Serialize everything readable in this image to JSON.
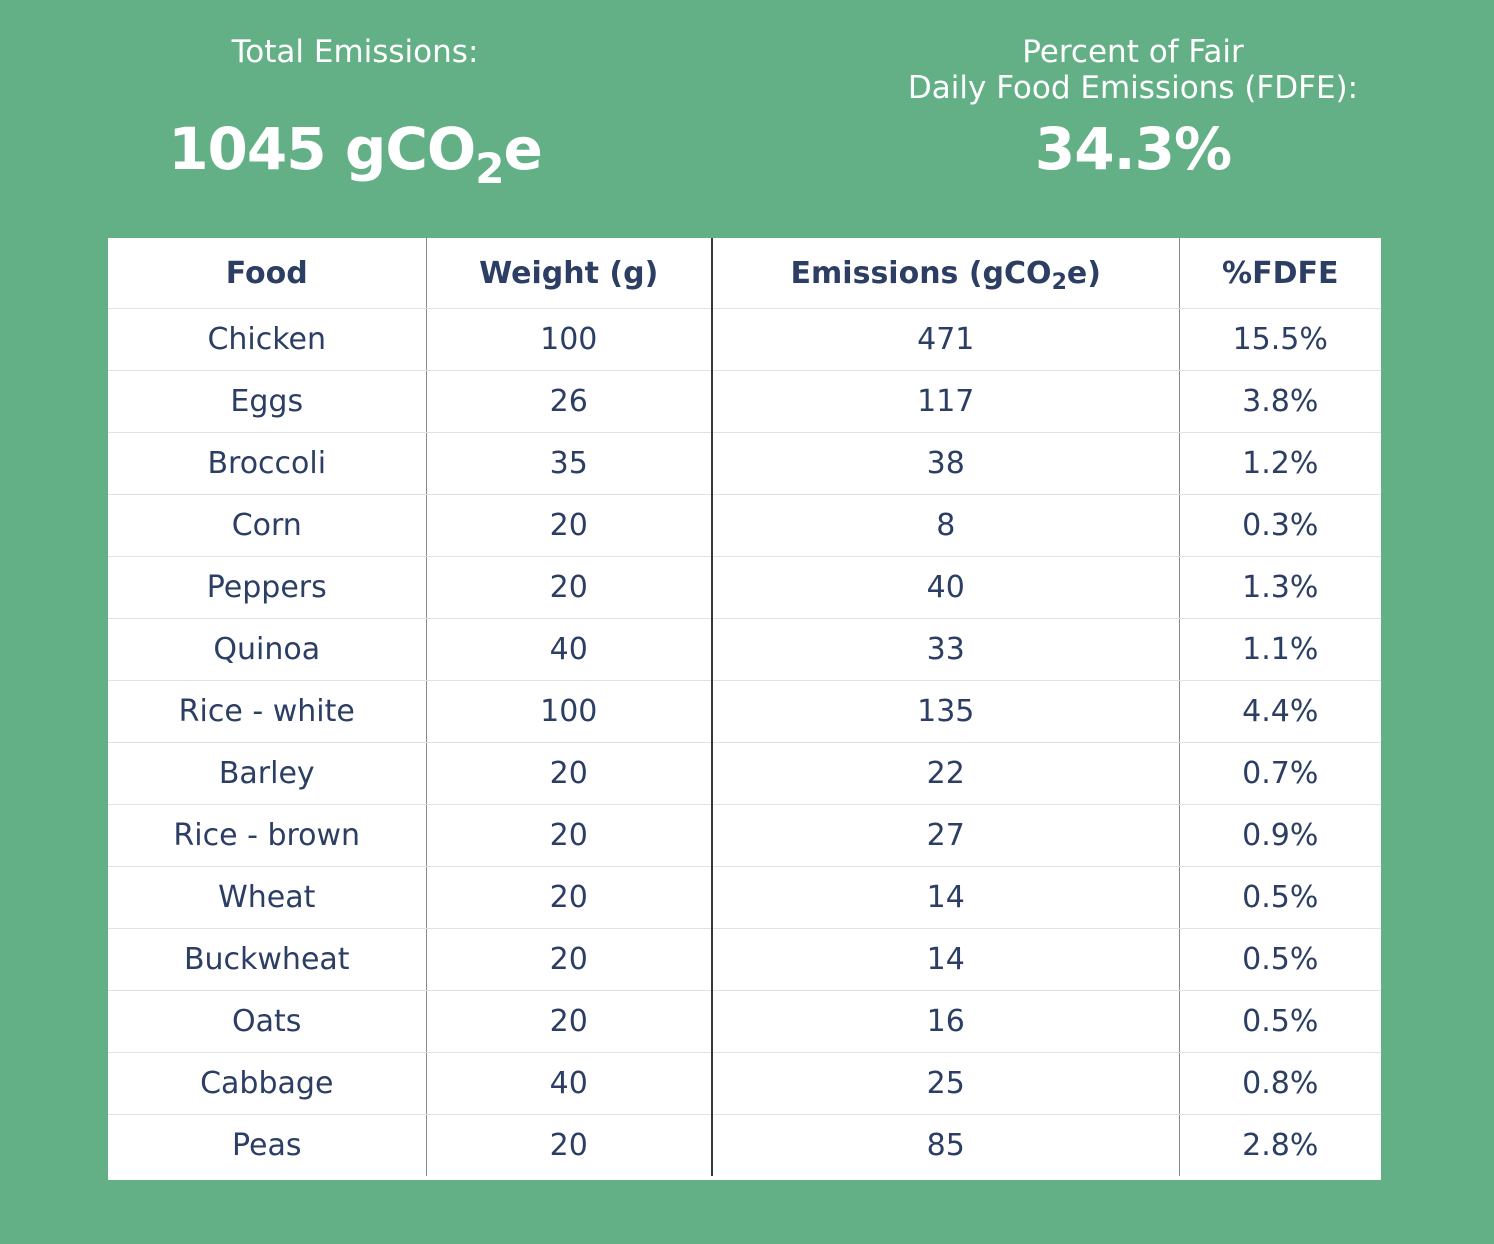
{
  "summary": {
    "total_label": "Total Emissions:",
    "total_value": "1045 gCO",
    "total_sub": "2",
    "total_suffix": "e",
    "percent_label_line1": "Percent of Fair",
    "percent_label_line2": "Daily Food Emissions (FDFE):",
    "percent_value": "34.3%"
  },
  "table": {
    "headers": {
      "food": "Food",
      "weight": "Weight (g)",
      "emissions_prefix": "Emissions (gCO",
      "emissions_sub": "2",
      "emissions_suffix": "e)",
      "fdfe": "%FDFE"
    },
    "rows": [
      [
        "Chicken",
        "100",
        "471",
        "15.5%"
      ],
      [
        "Eggs",
        "26",
        "117",
        "3.8%"
      ],
      [
        "Broccoli",
        "35",
        "38",
        "1.2%"
      ],
      [
        "Corn",
        "20",
        "8",
        "0.3%"
      ],
      [
        "Peppers",
        "20",
        "40",
        "1.3%"
      ],
      [
        "Quinoa",
        "40",
        "33",
        "1.1%"
      ],
      [
        "Rice - white",
        "100",
        "135",
        "4.4%"
      ],
      [
        "Barley",
        "20",
        "22",
        "0.7%"
      ],
      [
        "Rice - brown",
        "20",
        "27",
        "0.9%"
      ],
      [
        "Wheat",
        "20",
        "14",
        "0.5%"
      ],
      [
        "Buckwheat",
        "20",
        "14",
        "0.5%"
      ],
      [
        "Oats",
        "20",
        "16",
        "0.5%"
      ],
      [
        "Cabbage",
        "40",
        "25",
        "0.8%"
      ],
      [
        "Peas",
        "20",
        "85",
        "2.8%"
      ]
    ]
  },
  "colors": {
    "background": "#63b086",
    "table_text": "#2c3e63",
    "table_background": "#ffffff"
  }
}
